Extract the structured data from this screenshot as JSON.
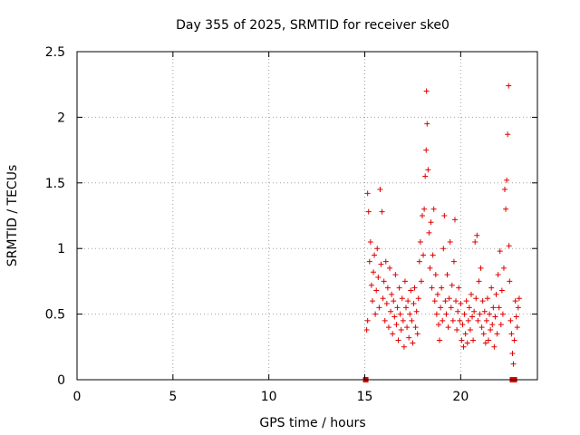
{
  "chart_data": {
    "type": "scatter",
    "title": "Day 355 of 2025, SRMTID for receiver ske0",
    "xlabel": "GPS time / hours",
    "ylabel": "SRMTID / TECUs",
    "xlim": [
      0,
      24
    ],
    "ylim": [
      0,
      2.5
    ],
    "xticks": [
      0,
      5,
      10,
      15,
      20
    ],
    "yticks": [
      0,
      0.5,
      1,
      1.5,
      2,
      2.5
    ],
    "xtick_labels": [
      "0",
      "5",
      "10",
      "15",
      "20"
    ],
    "ytick_labels": [
      "0",
      "0.5",
      "1",
      "1.5",
      "2",
      "2.5"
    ],
    "grid": true,
    "marker": "plus",
    "color": "#e00000",
    "series": [
      {
        "name": "SRMTID",
        "points": [
          [
            15.05,
            0.0
          ],
          [
            22.7,
            0.0
          ],
          [
            22.8,
            0.0
          ],
          [
            15.1,
            0.38
          ],
          [
            15.15,
            0.45
          ],
          [
            15.15,
            1.42
          ],
          [
            15.2,
            1.28
          ],
          [
            15.25,
            0.9
          ],
          [
            15.3,
            1.05
          ],
          [
            15.35,
            0.72
          ],
          [
            15.4,
            0.6
          ],
          [
            15.45,
            0.82
          ],
          [
            15.5,
            0.95
          ],
          [
            15.55,
            0.5
          ],
          [
            15.6,
            0.68
          ],
          [
            15.65,
            1.0
          ],
          [
            15.7,
            0.78
          ],
          [
            15.75,
            0.55
          ],
          [
            15.8,
            1.45
          ],
          [
            15.85,
            0.88
          ],
          [
            15.9,
            1.28
          ],
          [
            15.95,
            0.62
          ],
          [
            16.0,
            0.75
          ],
          [
            16.05,
            0.45
          ],
          [
            16.1,
            0.9
          ],
          [
            16.15,
            0.58
          ],
          [
            16.2,
            0.7
          ],
          [
            16.25,
            0.4
          ],
          [
            16.3,
            0.85
          ],
          [
            16.35,
            0.52
          ],
          [
            16.4,
            0.65
          ],
          [
            16.45,
            0.35
          ],
          [
            16.5,
            0.6
          ],
          [
            16.55,
            0.48
          ],
          [
            16.6,
            0.8
          ],
          [
            16.65,
            0.42
          ],
          [
            16.7,
            0.55
          ],
          [
            16.75,
            0.3
          ],
          [
            16.8,
            0.7
          ],
          [
            16.85,
            0.5
          ],
          [
            16.9,
            0.38
          ],
          [
            16.95,
            0.62
          ],
          [
            17.0,
            0.45
          ],
          [
            17.05,
            0.25
          ],
          [
            17.1,
            0.75
          ],
          [
            17.15,
            0.55
          ],
          [
            17.2,
            0.4
          ],
          [
            17.25,
            0.6
          ],
          [
            17.3,
            0.32
          ],
          [
            17.35,
            0.5
          ],
          [
            17.4,
            0.68
          ],
          [
            17.45,
            0.45
          ],
          [
            17.5,
            0.28
          ],
          [
            17.55,
            0.58
          ],
          [
            17.6,
            0.7
          ],
          [
            17.65,
            0.4
          ],
          [
            17.7,
            0.52
          ],
          [
            17.75,
            0.35
          ],
          [
            17.8,
            0.62
          ],
          [
            17.85,
            0.9
          ],
          [
            17.9,
            1.05
          ],
          [
            17.95,
            0.75
          ],
          [
            18.0,
            1.25
          ],
          [
            18.05,
            0.95
          ],
          [
            18.1,
            1.3
          ],
          [
            18.15,
            1.55
          ],
          [
            18.2,
            1.75
          ],
          [
            18.22,
            2.2
          ],
          [
            18.25,
            1.95
          ],
          [
            18.3,
            1.6
          ],
          [
            18.35,
            1.12
          ],
          [
            18.4,
            0.85
          ],
          [
            18.45,
            1.2
          ],
          [
            18.5,
            0.7
          ],
          [
            18.55,
            0.95
          ],
          [
            18.6,
            1.3
          ],
          [
            18.65,
            0.6
          ],
          [
            18.7,
            0.8
          ],
          [
            18.75,
            0.5
          ],
          [
            18.8,
            0.65
          ],
          [
            18.85,
            0.42
          ],
          [
            18.9,
            0.3
          ],
          [
            18.95,
            0.55
          ],
          [
            19.0,
            0.7
          ],
          [
            19.05,
            0.45
          ],
          [
            19.1,
            1.0
          ],
          [
            19.15,
            1.25
          ],
          [
            19.2,
            0.6
          ],
          [
            19.25,
            0.5
          ],
          [
            19.3,
            0.8
          ],
          [
            19.35,
            0.4
          ],
          [
            19.4,
            0.62
          ],
          [
            19.45,
            1.05
          ],
          [
            19.5,
            0.55
          ],
          [
            19.55,
            0.72
          ],
          [
            19.6,
            0.45
          ],
          [
            19.65,
            0.9
          ],
          [
            19.7,
            1.22
          ],
          [
            19.75,
            0.6
          ],
          [
            19.8,
            0.38
          ],
          [
            19.85,
            0.52
          ],
          [
            19.9,
            0.7
          ],
          [
            19.95,
            0.45
          ],
          [
            20.0,
            0.58
          ],
          [
            20.05,
            0.3
          ],
          [
            20.1,
            0.42
          ],
          [
            20.15,
            0.25
          ],
          [
            20.2,
            0.5
          ],
          [
            20.25,
            0.35
          ],
          [
            20.3,
            0.6
          ],
          [
            20.35,
            0.28
          ],
          [
            20.4,
            0.45
          ],
          [
            20.45,
            0.55
          ],
          [
            20.5,
            0.38
          ],
          [
            20.55,
            0.65
          ],
          [
            20.6,
            0.48
          ],
          [
            20.65,
            0.3
          ],
          [
            20.7,
            0.52
          ],
          [
            20.75,
            1.05
          ],
          [
            20.8,
            0.62
          ],
          [
            20.85,
            1.1
          ],
          [
            20.9,
            0.45
          ],
          [
            20.95,
            0.75
          ],
          [
            21.0,
            0.5
          ],
          [
            21.05,
            0.85
          ],
          [
            21.1,
            0.4
          ],
          [
            21.15,
            0.6
          ],
          [
            21.2,
            0.35
          ],
          [
            21.25,
            0.52
          ],
          [
            21.3,
            0.28
          ],
          [
            21.35,
            0.45
          ],
          [
            21.4,
            0.62
          ],
          [
            21.45,
            0.3
          ],
          [
            21.5,
            0.5
          ],
          [
            21.55,
            0.38
          ],
          [
            21.6,
            0.7
          ],
          [
            21.65,
            0.42
          ],
          [
            21.7,
            0.55
          ],
          [
            21.75,
            0.25
          ],
          [
            21.8,
            0.48
          ],
          [
            21.85,
            0.65
          ],
          [
            21.9,
            0.35
          ],
          [
            21.95,
            0.8
          ],
          [
            22.0,
            0.55
          ],
          [
            22.05,
            0.98
          ],
          [
            22.1,
            0.42
          ],
          [
            22.15,
            0.68
          ],
          [
            22.2,
            0.5
          ],
          [
            22.25,
            0.85
          ],
          [
            22.3,
            1.45
          ],
          [
            22.35,
            1.3
          ],
          [
            22.4,
            1.52
          ],
          [
            22.45,
            1.87
          ],
          [
            22.5,
            2.24
          ],
          [
            22.52,
            1.02
          ],
          [
            22.55,
            0.75
          ],
          [
            22.6,
            0.45
          ],
          [
            22.65,
            0.35
          ],
          [
            22.7,
            0.2
          ],
          [
            22.75,
            0.12
          ],
          [
            22.8,
            0.3
          ],
          [
            22.85,
            0.6
          ],
          [
            22.9,
            0.48
          ],
          [
            22.95,
            0.4
          ],
          [
            23.0,
            0.55
          ],
          [
            23.05,
            0.62
          ]
        ]
      }
    ]
  }
}
